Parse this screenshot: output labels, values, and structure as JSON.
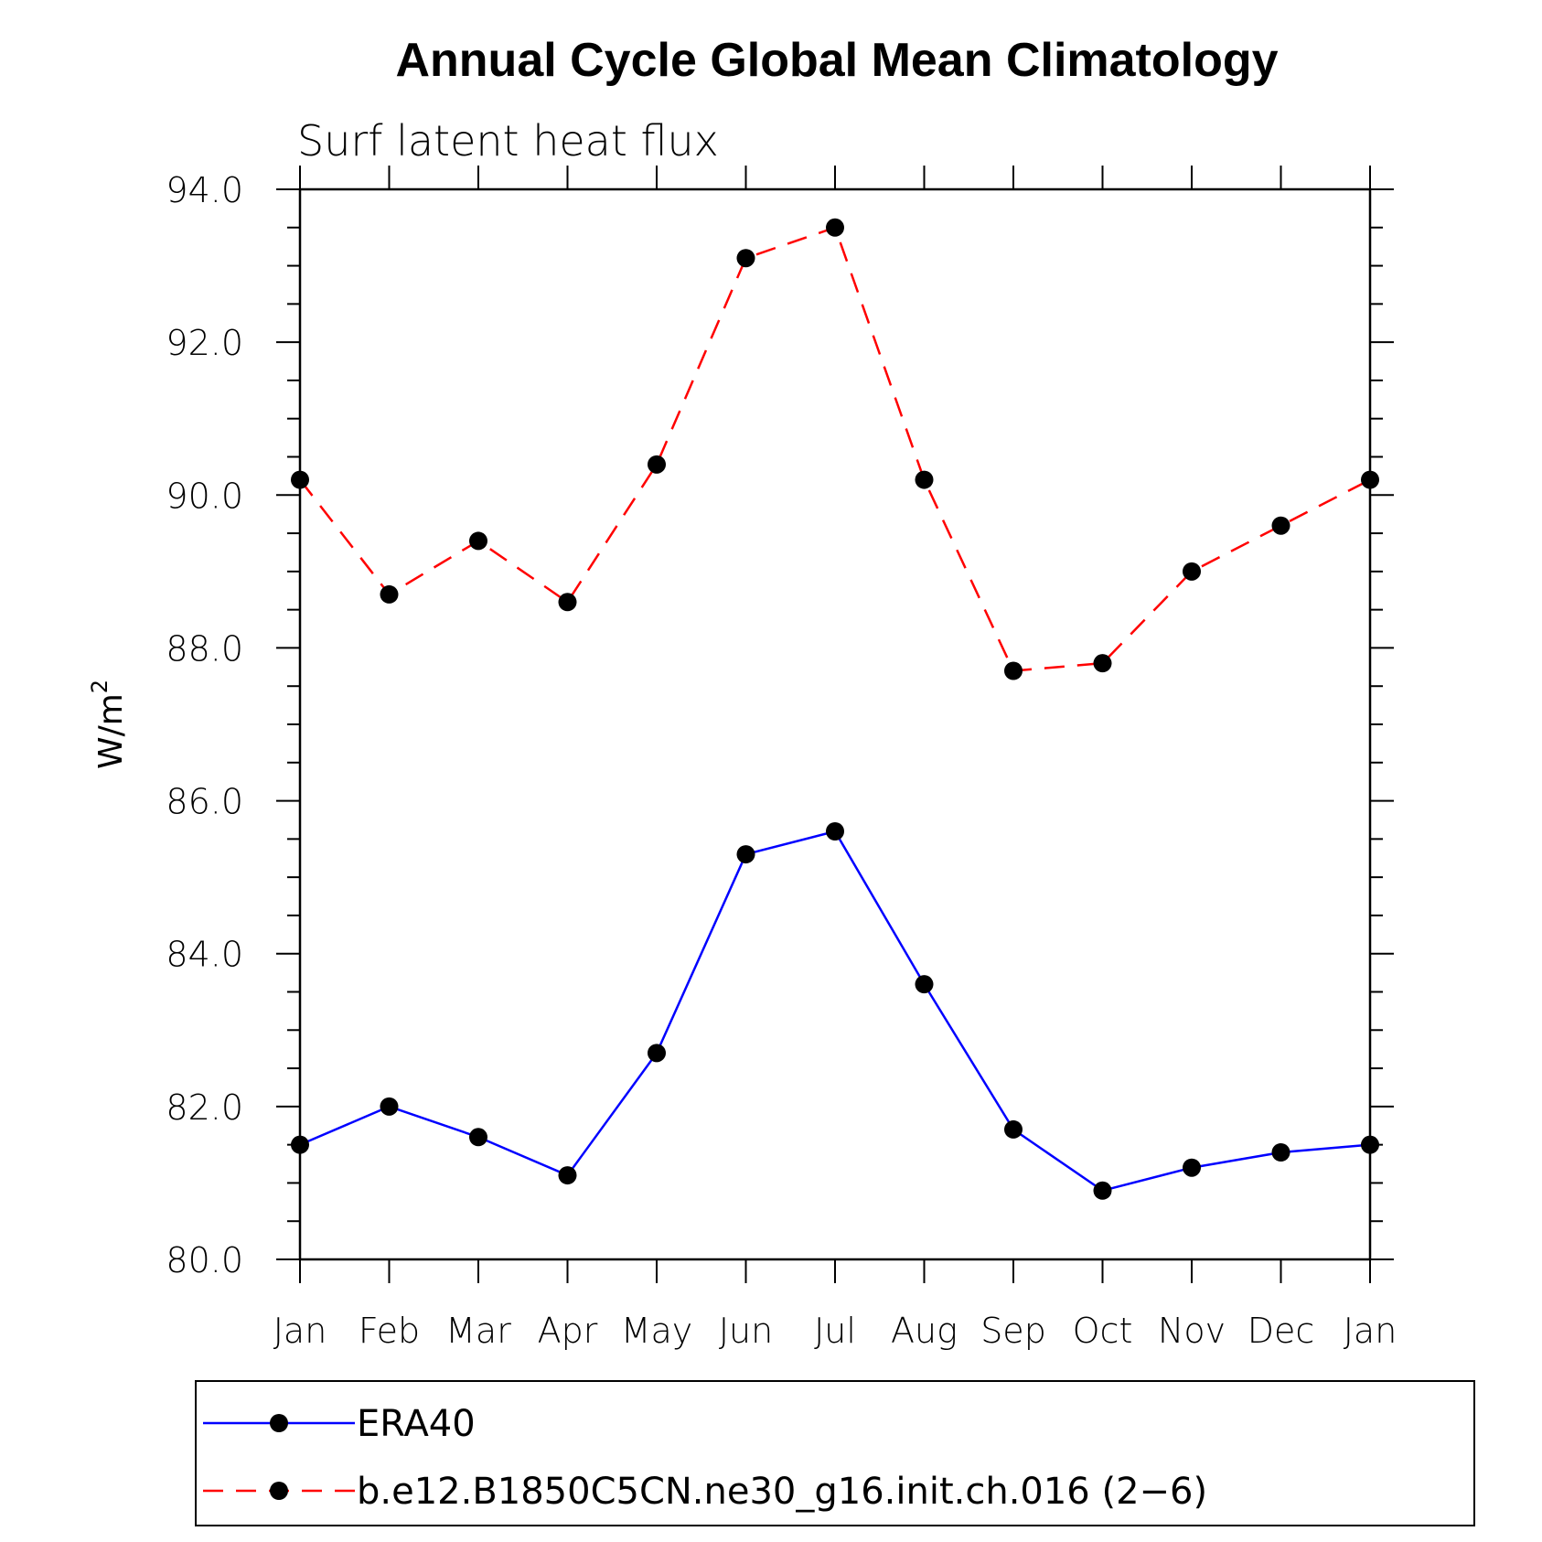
{
  "chart_data": {
    "type": "line",
    "title": "Annual Cycle Global Mean Climatology",
    "subtitle": "Surf latent heat flux",
    "xlabel": "",
    "ylabel": "W/m",
    "ylabel_sup": "2",
    "categories": [
      "Jan",
      "Feb",
      "Mar",
      "Apr",
      "May",
      "Jun",
      "Jul",
      "Aug",
      "Sep",
      "Oct",
      "Nov",
      "Dec",
      "Jan"
    ],
    "ylim": [
      80.0,
      94.0
    ],
    "yticks": [
      "80.0",
      "82.0",
      "84.0",
      "86.0",
      "88.0",
      "90.0",
      "92.0",
      "94.0"
    ],
    "series": [
      {
        "name": "ERA40",
        "color": "#0000ff",
        "dash": "solid",
        "values": [
          81.5,
          82.0,
          81.6,
          81.1,
          82.7,
          85.3,
          85.6,
          83.6,
          81.7,
          80.9,
          81.2,
          81.4,
          81.5
        ]
      },
      {
        "name": "b.e12.B1850C5CN.ne30_g16.init.ch.016 (2−6)",
        "color": "#ff0000",
        "dash": "dashed",
        "values": [
          90.2,
          88.7,
          89.4,
          88.6,
          90.4,
          93.1,
          93.5,
          90.2,
          87.7,
          87.8,
          89.0,
          89.6,
          90.2
        ]
      }
    ],
    "legend_position": "bottom"
  }
}
